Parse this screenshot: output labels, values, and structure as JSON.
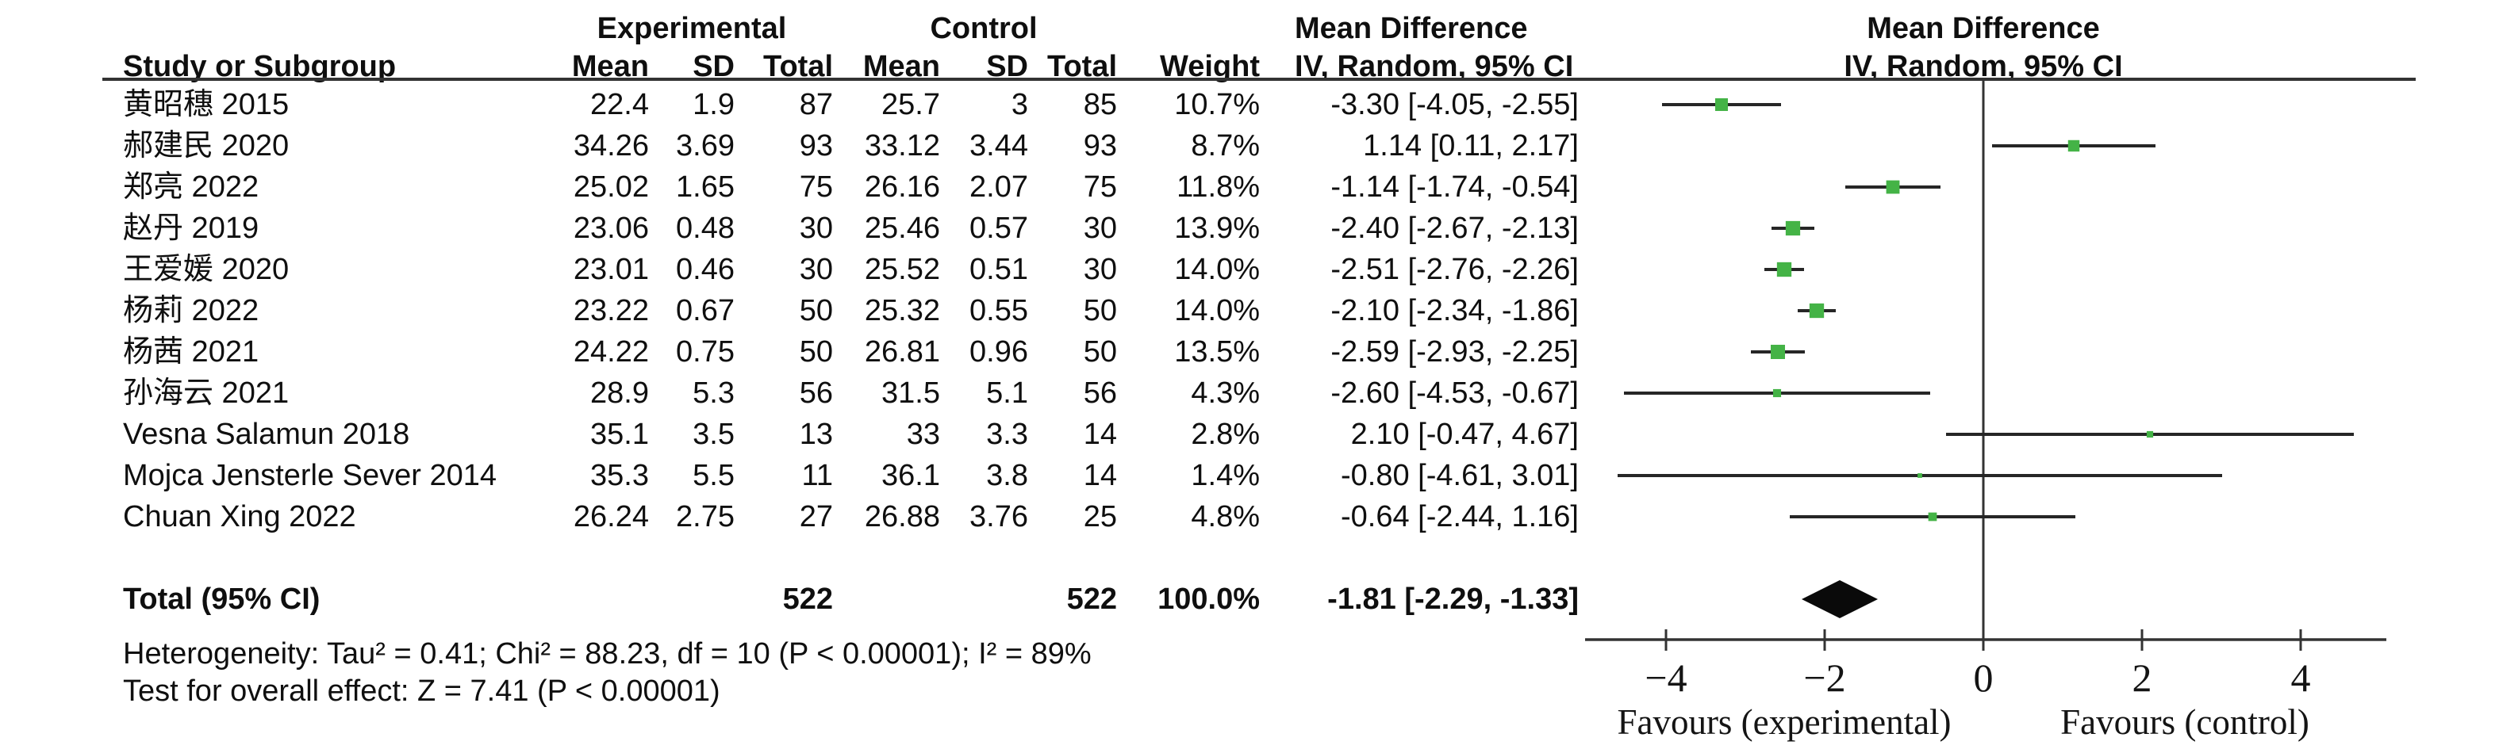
{
  "figure": {
    "group_headers": {
      "experimental": "Experimental",
      "control": "Control",
      "mean_difference_left": "Mean Difference",
      "mean_difference_right": "Mean Difference"
    },
    "column_headers": {
      "study": "Study or Subgroup",
      "exp_mean": "Mean",
      "exp_sd": "SD",
      "exp_total": "Total",
      "ctrl_mean": "Mean",
      "ctrl_sd": "SD",
      "ctrl_total": "Total",
      "weight": "Weight",
      "iv_left": "IV, Random, 95% CI",
      "iv_right": "IV, Random, 95% CI"
    },
    "total_label": "Total (95% CI)",
    "total_exp_n": "522",
    "total_ctrl_n": "522",
    "total_weight": "100.0%",
    "total_ci": "-1.81 [-2.29, -1.33]",
    "heterogeneity": "Heterogeneity: Tau² = 0.41; Chi² = 88.23, df = 10 (P < 0.00001); I² = 89%",
    "overall_effect": "Test for overall effect: Z = 7.41 (P < 0.00001)"
  },
  "chart_data": {
    "type": "forest",
    "title": "",
    "effect_label": "Mean Difference, IV, Random, 95% CI",
    "x_axis": {
      "min": -5,
      "max": 5,
      "ticks": [
        -4,
        -2,
        0,
        2,
        4
      ],
      "tick_labels": [
        "−4",
        "−2",
        "0",
        "2",
        "4"
      ],
      "favours_left": "Favours (experimental)",
      "favours_right": "Favours (control)"
    },
    "studies": [
      {
        "name": "黄昭穗 2015",
        "exp_mean": "22.4",
        "exp_sd": "1.9",
        "exp_total": "87",
        "ctrl_mean": "25.7",
        "ctrl_sd": "3",
        "ctrl_total": "85",
        "weight": "10.7%",
        "weight_value": 10.7,
        "md": -3.3,
        "ci_low": -4.05,
        "ci_high": -2.55,
        "ci_text": "-3.30 [-4.05, -2.55]"
      },
      {
        "name": "郝建民 2020",
        "exp_mean": "34.26",
        "exp_sd": "3.69",
        "exp_total": "93",
        "ctrl_mean": "33.12",
        "ctrl_sd": "3.44",
        "ctrl_total": "93",
        "weight": "8.7%",
        "weight_value": 8.7,
        "md": 1.14,
        "ci_low": 0.11,
        "ci_high": 2.17,
        "ci_text": "1.14 [0.11, 2.17]"
      },
      {
        "name": "郑亮 2022",
        "exp_mean": "25.02",
        "exp_sd": "1.65",
        "exp_total": "75",
        "ctrl_mean": "26.16",
        "ctrl_sd": "2.07",
        "ctrl_total": "75",
        "weight": "11.8%",
        "weight_value": 11.8,
        "md": -1.14,
        "ci_low": -1.74,
        "ci_high": -0.54,
        "ci_text": "-1.14 [-1.74, -0.54]"
      },
      {
        "name": "赵丹 2019",
        "exp_mean": "23.06",
        "exp_sd": "0.48",
        "exp_total": "30",
        "ctrl_mean": "25.46",
        "ctrl_sd": "0.57",
        "ctrl_total": "30",
        "weight": "13.9%",
        "weight_value": 13.9,
        "md": -2.4,
        "ci_low": -2.67,
        "ci_high": -2.13,
        "ci_text": "-2.40 [-2.67, -2.13]"
      },
      {
        "name": "王爱媛 2020",
        "exp_mean": "23.01",
        "exp_sd": "0.46",
        "exp_total": "30",
        "ctrl_mean": "25.52",
        "ctrl_sd": "0.51",
        "ctrl_total": "30",
        "weight": "14.0%",
        "weight_value": 14.0,
        "md": -2.51,
        "ci_low": -2.76,
        "ci_high": -2.26,
        "ci_text": "-2.51 [-2.76, -2.26]"
      },
      {
        "name": "杨莉 2022",
        "exp_mean": "23.22",
        "exp_sd": "0.67",
        "exp_total": "50",
        "ctrl_mean": "25.32",
        "ctrl_sd": "0.55",
        "ctrl_total": "50",
        "weight": "14.0%",
        "weight_value": 14.0,
        "md": -2.1,
        "ci_low": -2.34,
        "ci_high": -1.86,
        "ci_text": "-2.10 [-2.34, -1.86]"
      },
      {
        "name": "杨茜 2021",
        "exp_mean": "24.22",
        "exp_sd": "0.75",
        "exp_total": "50",
        "ctrl_mean": "26.81",
        "ctrl_sd": "0.96",
        "ctrl_total": "50",
        "weight": "13.5%",
        "weight_value": 13.5,
        "md": -2.59,
        "ci_low": -2.93,
        "ci_high": -2.25,
        "ci_text": "-2.59 [-2.93, -2.25]"
      },
      {
        "name": "孙海云 2021",
        "exp_mean": "28.9",
        "exp_sd": "5.3",
        "exp_total": "56",
        "ctrl_mean": "31.5",
        "ctrl_sd": "5.1",
        "ctrl_total": "56",
        "weight": "4.3%",
        "weight_value": 4.3,
        "md": -2.6,
        "ci_low": -4.53,
        "ci_high": -0.67,
        "ci_text": "-2.60 [-4.53, -0.67]"
      },
      {
        "name": "Vesna Salamun 2018",
        "exp_mean": "35.1",
        "exp_sd": "3.5",
        "exp_total": "13",
        "ctrl_mean": "33",
        "ctrl_sd": "3.3",
        "ctrl_total": "14",
        "weight": "2.8%",
        "weight_value": 2.8,
        "md": 2.1,
        "ci_low": -0.47,
        "ci_high": 4.67,
        "ci_text": "2.10 [-0.47, 4.67]"
      },
      {
        "name": "Mojca Jensterle Sever 2014",
        "exp_mean": "35.3",
        "exp_sd": "5.5",
        "exp_total": "11",
        "ctrl_mean": "36.1",
        "ctrl_sd": "3.8",
        "ctrl_total": "14",
        "weight": "1.4%",
        "weight_value": 1.4,
        "md": -0.8,
        "ci_low": -4.61,
        "ci_high": 3.01,
        "ci_text": "-0.80 [-4.61, 3.01]"
      },
      {
        "name": "Chuan Xing 2022",
        "exp_mean": "26.24",
        "exp_sd": "2.75",
        "exp_total": "27",
        "ctrl_mean": "26.88",
        "ctrl_sd": "3.76",
        "ctrl_total": "25",
        "weight": "4.8%",
        "weight_value": 4.8,
        "md": -0.64,
        "ci_low": -2.44,
        "ci_high": 1.16,
        "ci_text": "-0.64 [-2.44, 1.16]"
      }
    ],
    "total": {
      "label": "Total (95% CI)",
      "exp_total": 522,
      "ctrl_total": 522,
      "weight": "100.0%",
      "md": -1.81,
      "ci_low": -2.29,
      "ci_high": -1.33,
      "ci_text": "-1.81 [-2.29, -1.33]"
    },
    "heterogeneity": {
      "tau2": 0.41,
      "chi2": 88.23,
      "df": 10,
      "p": "< 0.00001",
      "i2": "89%"
    },
    "overall_effect_test": {
      "z": 7.41,
      "p": "< 0.00001"
    },
    "colors": {
      "marker": "#44b346",
      "ci_line": "#262626",
      "diamond": "#0a0a0a",
      "axis": "#333333",
      "text": "#0f0f0f"
    },
    "layout": {
      "legend_position": "none",
      "grid": false,
      "zero_line": true
    }
  }
}
